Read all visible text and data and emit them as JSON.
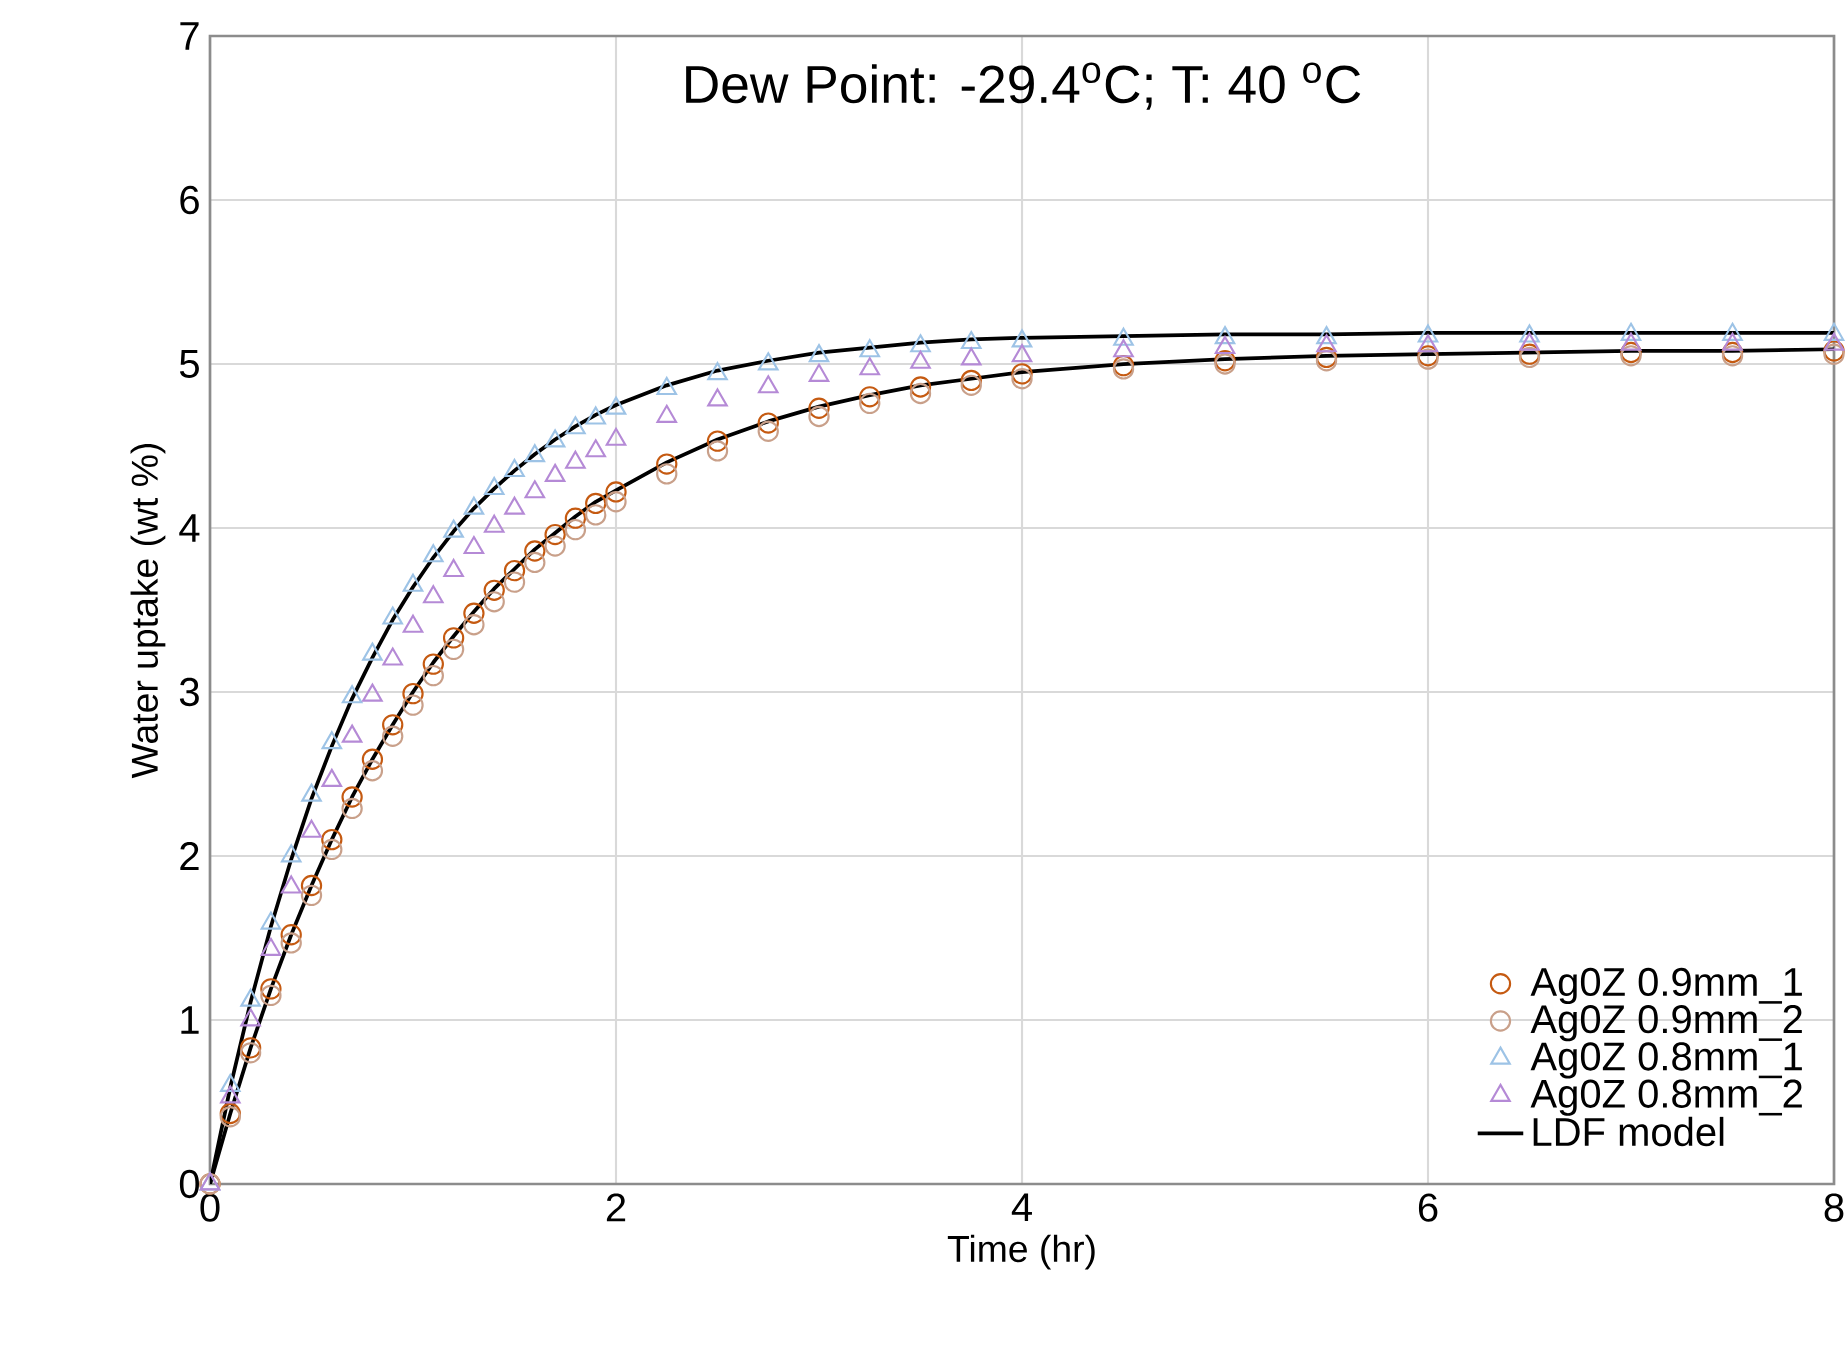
{
  "chart_data": {
    "type": "scatter",
    "xlabel": "Time (hr)",
    "ylabel": "Water uptake (wt %)",
    "annotations": [
      "Dew Point: -29.4$^{o}$C;  T: 40 $^{o}$C"
    ],
    "x": [
      0,
      0.1,
      0.2,
      0.3,
      0.4,
      0.5,
      0.6,
      0.7,
      0.8,
      0.9,
      1.0,
      1.1,
      1.2,
      1.3,
      1.4,
      1.5,
      1.6,
      1.7,
      1.8,
      1.9,
      2.0,
      2.25,
      2.5,
      2.75,
      3,
      3.25,
      3.5,
      3.75,
      4,
      4.5,
      5,
      5.5,
      6,
      6.5,
      7,
      7.5,
      8
    ],
    "xlim": [
      0,
      8
    ],
    "ylim": [
      0,
      7
    ],
    "xticks": [
      0,
      2,
      4,
      6,
      8
    ],
    "yticks": [
      0,
      1,
      2,
      3,
      4,
      5,
      6,
      7
    ],
    "grid": true,
    "legend": "bottom right",
    "series": [
      {
        "name": "Ag0Z 0.9mm_1",
        "color": "#c55a11",
        "marker": "circle",
        "values": [
          0,
          0.43,
          0.83,
          1.19,
          1.52,
          1.82,
          2.1,
          2.36,
          2.59,
          2.8,
          2.99,
          3.17,
          3.33,
          3.48,
          3.62,
          3.74,
          3.86,
          3.96,
          4.06,
          4.15,
          4.22,
          4.39,
          4.53,
          4.64,
          4.73,
          4.8,
          4.86,
          4.9,
          4.94,
          4.99,
          5.02,
          5.04,
          5.05,
          5.06,
          5.07,
          5.07,
          5.08
        ]
      },
      {
        "name": "Ag0Z 0.9mm_2",
        "color": "#c9a08a",
        "marker": "circle",
        "values": [
          0,
          0.41,
          0.8,
          1.15,
          1.47,
          1.76,
          2.04,
          2.29,
          2.52,
          2.73,
          2.92,
          3.1,
          3.26,
          3.41,
          3.55,
          3.67,
          3.79,
          3.89,
          3.99,
          4.08,
          4.16,
          4.33,
          4.47,
          4.59,
          4.68,
          4.76,
          4.82,
          4.87,
          4.91,
          4.97,
          5.0,
          5.02,
          5.03,
          5.04,
          5.05,
          5.05,
          5.06
        ]
      },
      {
        "name": "Ag0Z 0.8mm_1",
        "color": "#9dc3e6",
        "marker": "triangle",
        "values": [
          0,
          0.6,
          1.12,
          1.59,
          2.0,
          2.37,
          2.69,
          2.97,
          3.23,
          3.45,
          3.65,
          3.83,
          3.98,
          4.12,
          4.24,
          4.35,
          4.44,
          4.53,
          4.61,
          4.67,
          4.73,
          4.85,
          4.94,
          5.0,
          5.05,
          5.08,
          5.11,
          5.13,
          5.14,
          5.15,
          5.16,
          5.16,
          5.17,
          5.17,
          5.18,
          5.18,
          5.18
        ]
      },
      {
        "name": "Ag0Z 0.8mm_2",
        "color": "#b58ad6",
        "marker": "triangle",
        "values": [
          0,
          0.53,
          1.0,
          1.43,
          1.81,
          2.15,
          2.46,
          2.73,
          2.98,
          3.2,
          3.4,
          3.58,
          3.74,
          3.88,
          4.01,
          4.12,
          4.22,
          4.32,
          4.4,
          4.47,
          4.54,
          4.68,
          4.78,
          4.86,
          4.93,
          4.97,
          5.01,
          5.03,
          5.05,
          5.08,
          5.1,
          5.11,
          5.11,
          5.12,
          5.12,
          5.12,
          5.12
        ]
      },
      {
        "name": "LDF model",
        "type": "line",
        "color": "#000000",
        "values": [
          0,
          0.59,
          1.11,
          1.57,
          1.98,
          2.35,
          2.67,
          2.96,
          3.21,
          3.44,
          3.64,
          3.82,
          3.98,
          4.12,
          4.24,
          4.35,
          4.45,
          4.54,
          4.62,
          4.69,
          4.75,
          4.87,
          4.96,
          5.02,
          5.07,
          5.1,
          5.13,
          5.15,
          5.16,
          5.17,
          5.18,
          5.18,
          5.19,
          5.19,
          5.19,
          5.19,
          5.19
        ]
      },
      {
        "type": "line",
        "color": "#000000",
        "values": [
          0,
          0.43,
          0.83,
          1.19,
          1.52,
          1.82,
          2.1,
          2.36,
          2.59,
          2.8,
          3.0,
          3.18,
          3.34,
          3.49,
          3.63,
          3.75,
          3.87,
          3.97,
          4.07,
          4.16,
          4.23,
          4.4,
          4.54,
          4.65,
          4.74,
          4.81,
          4.87,
          4.91,
          4.95,
          5.0,
          5.03,
          5.05,
          5.06,
          5.07,
          5.08,
          5.08,
          5.09
        ]
      }
    ]
  }
}
